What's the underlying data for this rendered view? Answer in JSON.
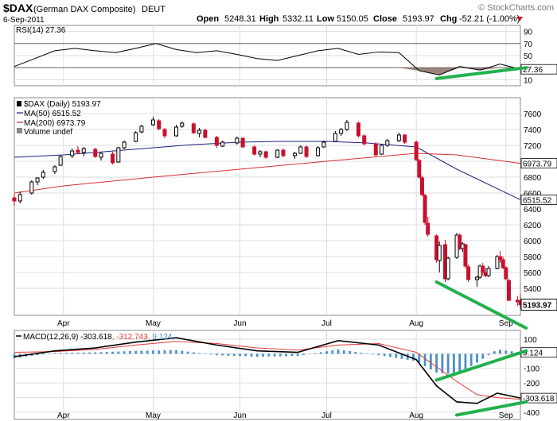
{
  "header": {
    "symbol": "$DAX",
    "name": "(German DAX Composite)",
    "exchange": "DEUT",
    "date": "6-Sep-2011",
    "open_label": "Open",
    "open": "5248.31",
    "high_label": "High",
    "high": "5332.11",
    "low_label": "Low",
    "low": "5150.05",
    "close_label": "Close",
    "close": "5193.97",
    "chg_label": "Chg",
    "chg": "-52.21 (-1.00%)",
    "brand": "© StockCharts.com"
  },
  "colors": {
    "up_candle": "#000000",
    "down_candle": "#c8102e",
    "ma50": "#1a237e",
    "ma200": "#d32f2f",
    "macd_line": "#000000",
    "signal_line": "#e53935",
    "histogram": "#4a90c8",
    "trendline": "#22b14c",
    "rsi_fill": "#8a6f64",
    "grid": "#dddddd"
  },
  "chart_data": [
    {
      "type": "line",
      "panel": "rsi",
      "legend": "RSI(14) 27.36",
      "y_ticks": [
        90,
        70,
        50,
        30,
        10
      ],
      "ylim": [
        0,
        100
      ],
      "levels": [
        70,
        30
      ],
      "last_value_label": "27.36",
      "x": [
        "2011-03-15",
        "2011-03-22",
        "2011-03-29",
        "2011-04-05",
        "2011-04-12",
        "2011-04-19",
        "2011-04-26",
        "2011-05-03",
        "2011-05-10",
        "2011-05-17",
        "2011-05-24",
        "2011-05-31",
        "2011-06-07",
        "2011-06-14",
        "2011-06-21",
        "2011-06-28",
        "2011-07-05",
        "2011-07-12",
        "2011-07-19",
        "2011-07-26",
        "2011-08-02",
        "2011-08-09",
        "2011-08-16",
        "2011-08-23",
        "2011-08-30",
        "2011-09-06"
      ],
      "values": [
        32,
        45,
        58,
        62,
        58,
        55,
        62,
        70,
        60,
        55,
        58,
        52,
        45,
        42,
        50,
        58,
        62,
        52,
        56,
        55,
        25,
        18,
        32,
        26,
        36,
        27.36
      ]
    },
    {
      "type": "candlestick",
      "panel": "price",
      "legend": "$DAX (Daily) 5193.97",
      "y_ticks": [
        7600,
        7400,
        7200,
        7000,
        6800,
        6600,
        6400,
        6200,
        6000,
        5800,
        5600,
        5400
      ],
      "ylim": [
        5060,
        7800
      ],
      "x_labels": [
        "Apr",
        "May",
        "Jun",
        "Jul",
        "Aug",
        "Sep"
      ],
      "x_label_dates": [
        "2011-04-01",
        "2011-05-02",
        "2011-06-01",
        "2011-07-01",
        "2011-08-01",
        "2011-09-01"
      ],
      "ohlc": [
        [
          "2011-03-15",
          6540,
          6590,
          6440,
          6500
        ],
        [
          "2011-03-17",
          6500,
          6620,
          6470,
          6580
        ],
        [
          "2011-03-21",
          6600,
          6760,
          6580,
          6740
        ],
        [
          "2011-03-23",
          6740,
          6800,
          6700,
          6790
        ],
        [
          "2011-03-25",
          6800,
          6890,
          6780,
          6860
        ],
        [
          "2011-03-29",
          6870,
          6950,
          6840,
          6930
        ],
        [
          "2011-03-31",
          6950,
          7080,
          6940,
          7060
        ],
        [
          "2011-04-04",
          7070,
          7160,
          7040,
          7130
        ],
        [
          "2011-04-06",
          7140,
          7190,
          7090,
          7110
        ],
        [
          "2011-04-08",
          7110,
          7180,
          7060,
          7160
        ],
        [
          "2011-04-12",
          7150,
          7170,
          7040,
          7060
        ],
        [
          "2011-04-14",
          7050,
          7110,
          7010,
          7100
        ],
        [
          "2011-04-18",
          7090,
          7120,
          6960,
          6980
        ],
        [
          "2011-04-20",
          6990,
          7180,
          6980,
          7170
        ],
        [
          "2011-04-22",
          7170,
          7260,
          7150,
          7240
        ],
        [
          "2011-04-26",
          7250,
          7380,
          7240,
          7360
        ],
        [
          "2011-04-28",
          7370,
          7460,
          7350,
          7440
        ],
        [
          "2011-05-02",
          7460,
          7560,
          7440,
          7520
        ],
        [
          "2011-05-04",
          7510,
          7530,
          7390,
          7410
        ],
        [
          "2011-05-06",
          7400,
          7420,
          7290,
          7320
        ],
        [
          "2011-05-10",
          7320,
          7460,
          7310,
          7430
        ],
        [
          "2011-05-12",
          7440,
          7500,
          7420,
          7480
        ],
        [
          "2011-05-16",
          7470,
          7490,
          7340,
          7360
        ],
        [
          "2011-05-18",
          7350,
          7420,
          7300,
          7390
        ],
        [
          "2011-05-20",
          7390,
          7410,
          7290,
          7300
        ],
        [
          "2011-05-24",
          7300,
          7320,
          7170,
          7200
        ],
        [
          "2011-05-26",
          7190,
          7260,
          7180,
          7240
        ],
        [
          "2011-05-31",
          7230,
          7310,
          7210,
          7290
        ],
        [
          "2011-06-02",
          7290,
          7300,
          7170,
          7180
        ],
        [
          "2011-06-06",
          7180,
          7200,
          7070,
          7090
        ],
        [
          "2011-06-08",
          7090,
          7140,
          7050,
          7120
        ],
        [
          "2011-06-10",
          7120,
          7130,
          7030,
          7050
        ],
        [
          "2011-06-14",
          7050,
          7150,
          7040,
          7140
        ],
        [
          "2011-06-16",
          7140,
          7160,
          7050,
          7070
        ],
        [
          "2011-06-20",
          7070,
          7120,
          7030,
          7100
        ],
        [
          "2011-06-22",
          7100,
          7200,
          7090,
          7180
        ],
        [
          "2011-06-24",
          7180,
          7200,
          7040,
          7060
        ],
        [
          "2011-06-28",
          7070,
          7190,
          7060,
          7170
        ],
        [
          "2011-06-30",
          7180,
          7260,
          7170,
          7240
        ],
        [
          "2011-07-04",
          7250,
          7380,
          7240,
          7350
        ],
        [
          "2011-07-06",
          7350,
          7420,
          7320,
          7400
        ],
        [
          "2011-07-08",
          7400,
          7520,
          7380,
          7490
        ],
        [
          "2011-07-12",
          7480,
          7500,
          7300,
          7320
        ],
        [
          "2011-07-14",
          7320,
          7340,
          7200,
          7220
        ],
        [
          "2011-07-18",
          7220,
          7240,
          7060,
          7080
        ],
        [
          "2011-07-20",
          7090,
          7210,
          7080,
          7200
        ],
        [
          "2011-07-22",
          7200,
          7280,
          7180,
          7260
        ],
        [
          "2011-07-26",
          7260,
          7360,
          7240,
          7330
        ],
        [
          "2011-07-28",
          7330,
          7340,
          7220,
          7240
        ],
        [
          "2011-08-01",
          7240,
          7260,
          7000,
          7020
        ],
        [
          "2011-08-02",
          7010,
          7030,
          6780,
          6800
        ],
        [
          "2011-08-03",
          6790,
          6820,
          6560,
          6580
        ],
        [
          "2011-08-04",
          6570,
          6590,
          6200,
          6230
        ],
        [
          "2011-08-05",
          6220,
          6300,
          6050,
          6080
        ],
        [
          "2011-08-08",
          6060,
          6080,
          5720,
          5760
        ],
        [
          "2011-08-09",
          5750,
          5990,
          5600,
          5940
        ],
        [
          "2011-08-11",
          5950,
          6010,
          5480,
          5520
        ],
        [
          "2011-08-12",
          5520,
          5800,
          5500,
          5780
        ],
        [
          "2011-08-15",
          5790,
          6100,
          5770,
          6070
        ],
        [
          "2011-08-16",
          6070,
          6090,
          5880,
          5900
        ],
        [
          "2011-08-17",
          5900,
          5980,
          5860,
          5960
        ],
        [
          "2011-08-18",
          5950,
          5960,
          5650,
          5680
        ],
        [
          "2011-08-19",
          5670,
          5700,
          5480,
          5510
        ],
        [
          "2011-08-22",
          5510,
          5560,
          5420,
          5540
        ],
        [
          "2011-08-23",
          5540,
          5700,
          5520,
          5680
        ],
        [
          "2011-08-24",
          5680,
          5720,
          5560,
          5600
        ],
        [
          "2011-08-25",
          5600,
          5660,
          5540,
          5560
        ],
        [
          "2011-08-26",
          5560,
          5680,
          5540,
          5650
        ],
        [
          "2011-08-29",
          5650,
          5820,
          5640,
          5800
        ],
        [
          "2011-08-30",
          5800,
          5870,
          5720,
          5760
        ],
        [
          "2011-08-31",
          5760,
          5800,
          5640,
          5660
        ],
        [
          "2011-09-01",
          5660,
          5680,
          5500,
          5520
        ],
        [
          "2011-09-02",
          5500,
          5520,
          5240,
          5250
        ],
        [
          "2011-09-05",
          5250,
          5300,
          5180,
          5230
        ],
        [
          "2011-09-06",
          5248.31,
          5332.11,
          5150.05,
          5193.97
        ]
      ],
      "series": [
        {
          "name": "MA(50) 6515.52",
          "last_value_label": "6515.52",
          "x": [
            "2011-03-15",
            "2011-04-01",
            "2011-04-15",
            "2011-05-02",
            "2011-05-16",
            "2011-06-01",
            "2011-06-15",
            "2011-07-01",
            "2011-07-15",
            "2011-08-01",
            "2011-08-15",
            "2011-09-06"
          ],
          "values": [
            7050,
            7080,
            7120,
            7170,
            7210,
            7240,
            7250,
            7250,
            7230,
            7180,
            6900,
            6515.52
          ]
        },
        {
          "name": "MA(200) 6973.79",
          "last_value_label": "6973.79",
          "x": [
            "2011-03-15",
            "2011-04-01",
            "2011-05-02",
            "2011-06-01",
            "2011-07-01",
            "2011-08-01",
            "2011-08-15",
            "2011-09-06"
          ],
          "values": [
            6600,
            6690,
            6800,
            6900,
            7000,
            7100,
            7080,
            6973.79
          ]
        },
        {
          "name": "Volume undef"
        }
      ],
      "close_label": "5193.97"
    },
    {
      "type": "line",
      "panel": "macd",
      "legend_prefix": "MACD(12,26,9)",
      "legend_macd": "-303.618",
      "legend_signal": ", -312.743",
      "legend_hist": ", 9.124",
      "y_ticks": [
        100,
        0,
        -100,
        -200,
        -300,
        -400
      ],
      "tick_labels": [
        "100",
        "0",
        "-100",
        "-200",
        "",
        "-400"
      ],
      "ylim": [
        -450,
        160
      ],
      "last_macd_label": "-303.618",
      "last_hist_label": "9.124",
      "x": [
        "2011-03-15",
        "2011-03-29",
        "2011-04-12",
        "2011-04-26",
        "2011-05-10",
        "2011-05-24",
        "2011-06-07",
        "2011-06-21",
        "2011-07-05",
        "2011-07-19",
        "2011-08-01",
        "2011-08-08",
        "2011-08-15",
        "2011-08-22",
        "2011-08-29",
        "2011-09-06"
      ],
      "macd": [
        -20,
        20,
        40,
        80,
        110,
        60,
        20,
        10,
        90,
        60,
        -40,
        -220,
        -330,
        -340,
        -270,
        -303.618
      ],
      "signal": [
        10,
        15,
        30,
        60,
        85,
        70,
        40,
        25,
        60,
        70,
        10,
        -90,
        -190,
        -280,
        -300,
        -312.743
      ],
      "histogram": [
        -30,
        5,
        10,
        20,
        25,
        -10,
        -20,
        -15,
        30,
        -10,
        -50,
        -130,
        -140,
        -60,
        30,
        9.124
      ]
    }
  ],
  "annotations": {
    "trendlines": [
      {
        "panel": "rsi",
        "from": [
          "2011-08-08",
          12
        ],
        "to": [
          "2011-09-08",
          30
        ]
      },
      {
        "panel": "price",
        "from": [
          "2011-08-08",
          5480
        ],
        "to": [
          "2011-09-08",
          4900
        ]
      },
      {
        "panel": "macd",
        "from": [
          "2011-08-08",
          -180
        ],
        "to": [
          "2011-09-08",
          20
        ]
      },
      {
        "panel": "macd",
        "from": [
          "2011-08-15",
          -420
        ],
        "to": [
          "2011-09-08",
          -330
        ]
      }
    ]
  }
}
